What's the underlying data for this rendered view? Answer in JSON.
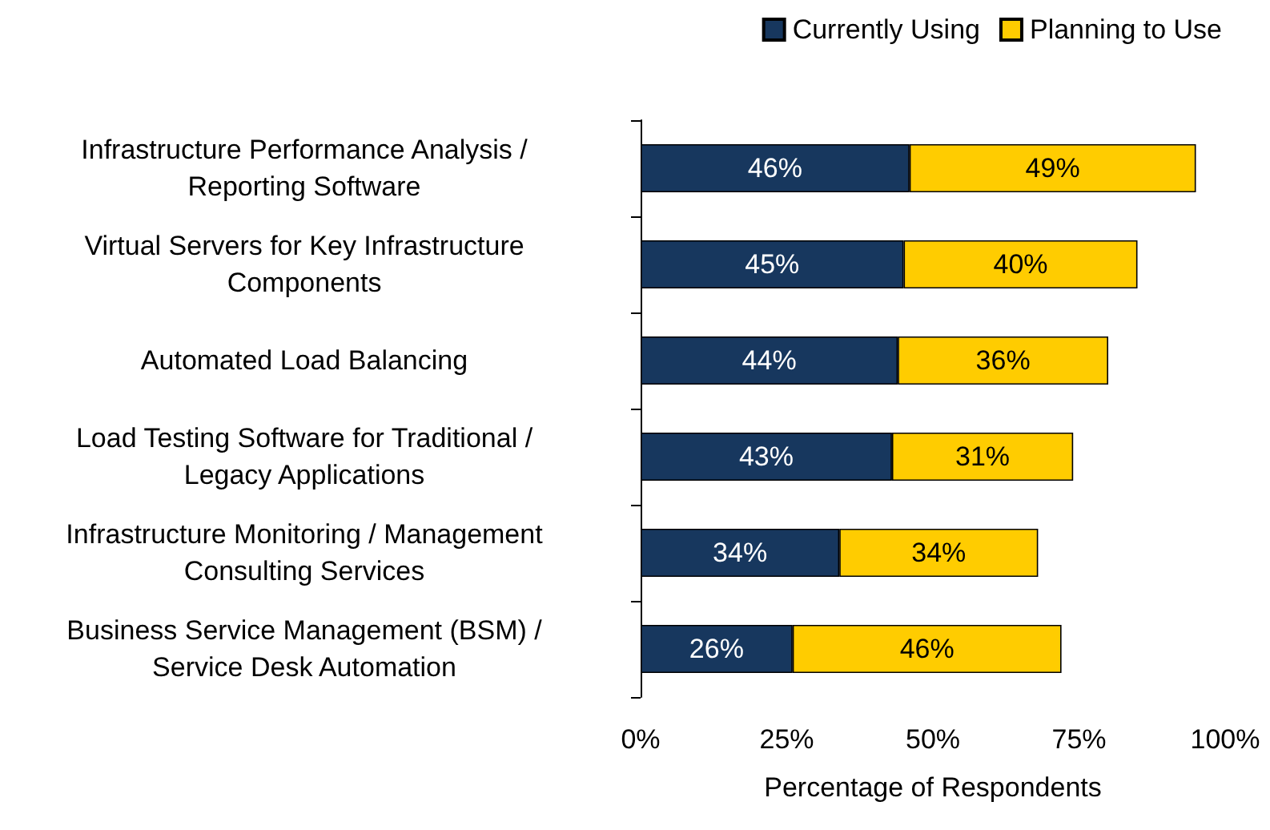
{
  "chart_data": {
    "type": "bar",
    "orientation": "horizontal",
    "stacked": true,
    "categories": [
      "Infrastructure Performance Analysis /\nReporting Software",
      "Virtual Servers for Key Infrastructure\nComponents",
      "Automated Load Balancing",
      "Load Testing Software for Traditional /\nLegacy Applications",
      "Infrastructure Monitoring / Management\nConsulting Services",
      "Business Service Management (BSM) /\nService Desk Automation"
    ],
    "series": [
      {
        "name": "Currently Using",
        "color": "#17375e",
        "values": [
          46,
          45,
          44,
          43,
          34,
          26
        ],
        "value_labels": [
          "46%",
          "45%",
          "44%",
          "43%",
          "34%",
          "26%"
        ]
      },
      {
        "name": "Planning to Use",
        "color": "#ffcc00",
        "values": [
          49,
          40,
          36,
          31,
          34,
          46
        ],
        "value_labels": [
          "49%",
          "40%",
          "36%",
          "31%",
          "34%",
          "46%"
        ]
      }
    ],
    "xlim": [
      0,
      100
    ],
    "xticks": [
      {
        "value": 0,
        "label": "0%"
      },
      {
        "value": 25,
        "label": "25%"
      },
      {
        "value": 50,
        "label": "50%"
      },
      {
        "value": 75,
        "label": "75%"
      },
      {
        "value": 100,
        "label": "100%"
      }
    ],
    "xlabel": "Percentage of Respondents",
    "legend": "top right",
    "grid": false
  }
}
